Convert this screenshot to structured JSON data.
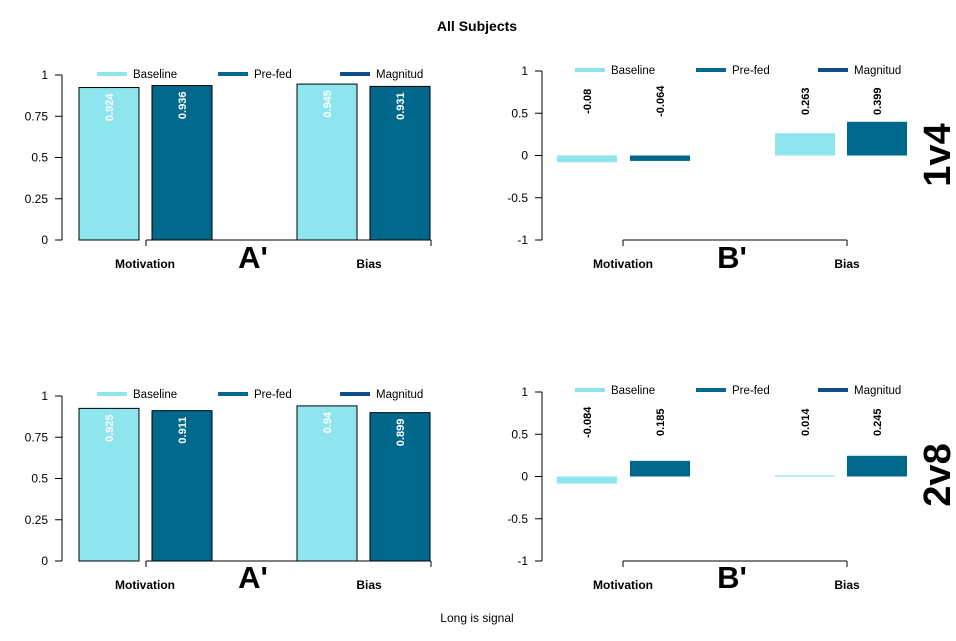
{
  "figure": {
    "title": "All Subjects",
    "footer": "Long is signal"
  },
  "chart_data": [
    {
      "type": "bar",
      "panel_letter": "A'",
      "row_label": "1v4",
      "categories": [
        "Motivation",
        "Bias"
      ],
      "series": [
        {
          "name": "Baseline",
          "color": "#8EE5EE",
          "values": [
            0.924,
            0.945
          ]
        },
        {
          "name": "Pre-fed",
          "color": "#00688B",
          "values": [
            0.936,
            0.931
          ]
        },
        {
          "name": "Magnitud",
          "color": "#104E8B",
          "values": [
            null,
            null
          ]
        }
      ],
      "ylim": [
        0,
        1
      ],
      "yticks": [
        0,
        0.25,
        0.5,
        0.75,
        1
      ],
      "value_labels_color": "#ffffff",
      "legend_position": "top"
    },
    {
      "type": "bar",
      "panel_letter": "B'",
      "row_label": "1v4",
      "categories": [
        "Motivation",
        "Bias"
      ],
      "series": [
        {
          "name": "Baseline",
          "color": "#8EE5EE",
          "values": [
            -0.08,
            0.263
          ]
        },
        {
          "name": "Pre-fed",
          "color": "#00688B",
          "values": [
            -0.064,
            0.399
          ]
        },
        {
          "name": "Magnitud",
          "color": "#104E8B",
          "values": [
            null,
            null
          ]
        }
      ],
      "ylim": [
        -1,
        1
      ],
      "yticks": [
        -1,
        -0.5,
        0,
        0.5,
        1
      ],
      "value_labels_color": "#000000",
      "legend_position": "top"
    },
    {
      "type": "bar",
      "panel_letter": "A'",
      "row_label": "2v8",
      "categories": [
        "Motivation",
        "Bias"
      ],
      "series": [
        {
          "name": "Baseline",
          "color": "#8EE5EE",
          "values": [
            0.925,
            0.94
          ]
        },
        {
          "name": "Pre-fed",
          "color": "#00688B",
          "values": [
            0.911,
            0.899
          ]
        },
        {
          "name": "Magnitud",
          "color": "#104E8B",
          "values": [
            null,
            null
          ]
        }
      ],
      "ylim": [
        0,
        1
      ],
      "yticks": [
        0,
        0.25,
        0.5,
        0.75,
        1
      ],
      "value_labels_color": "#ffffff",
      "legend_position": "top"
    },
    {
      "type": "bar",
      "panel_letter": "B'",
      "row_label": "2v8",
      "categories": [
        "Motivation",
        "Bias"
      ],
      "series": [
        {
          "name": "Baseline",
          "color": "#8EE5EE",
          "values": [
            -0.084,
            0.014
          ]
        },
        {
          "name": "Pre-fed",
          "color": "#00688B",
          "values": [
            0.185,
            0.245
          ]
        },
        {
          "name": "Magnitud",
          "color": "#104E8B",
          "values": [
            null,
            null
          ]
        }
      ],
      "ylim": [
        -1,
        1
      ],
      "yticks": [
        -1,
        -0.5,
        0,
        0.5,
        1
      ],
      "value_labels_color": "#000000",
      "legend_position": "top"
    }
  ]
}
